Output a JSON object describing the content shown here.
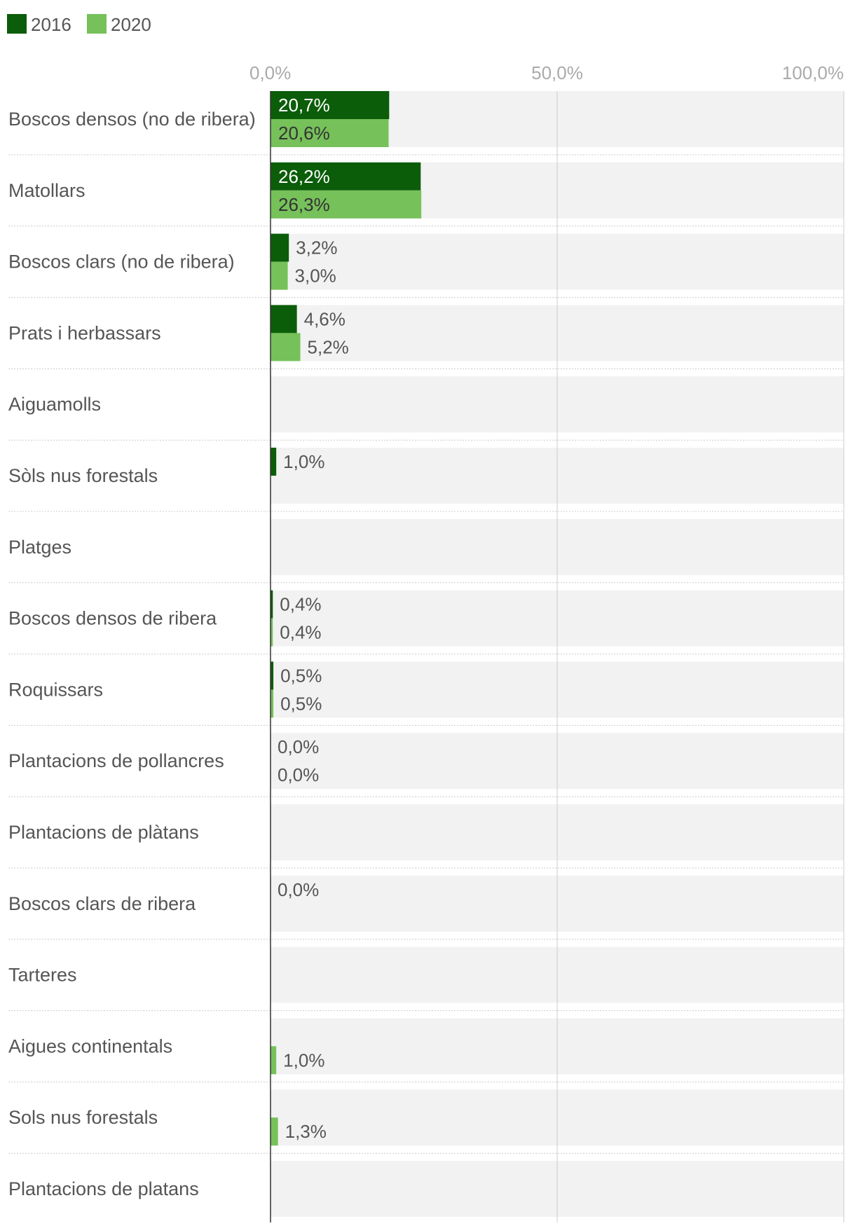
{
  "colors": {
    "series_2016": "#0b5d09",
    "series_2020": "#76c15a",
    "row_background": "#f2f2f2",
    "gridline": "#cccccc",
    "axis": "#333333",
    "separator": "#cccccc",
    "label_inside_2016": "#ffffff",
    "label_inside_2020": "#333333",
    "label_outside": "#555555",
    "tick_label": "#aaaaaa",
    "category_label": "#555555"
  },
  "chart_data": {
    "type": "bar",
    "orientation": "horizontal",
    "title": "",
    "xlabel": "",
    "ylabel": "",
    "xlim": [
      0,
      100
    ],
    "ticks": [
      {
        "value": 0,
        "label": "0,0%"
      },
      {
        "value": 50,
        "label": "50,0%"
      },
      {
        "value": 100,
        "label": "100,0%"
      }
    ],
    "grid": true,
    "legend": {
      "position": "top-left",
      "entries": [
        {
          "name": "2016",
          "color": "#0b5d09"
        },
        {
          "name": "2020",
          "color": "#76c15a"
        }
      ]
    },
    "categories": [
      "Boscos densos (no de ribera)",
      "Matollars",
      "Boscos clars (no de ribera)",
      "Prats i herbassars",
      "Aiguamolls",
      "Sòls nus forestals",
      "Platges",
      "Boscos densos de ribera",
      "Roquissars",
      "Plantacions de pollancres",
      "Plantacions de plàtans",
      "Boscos clars de ribera",
      "Tarteres",
      "Aigues continentals",
      "Sols nus forestals",
      "Plantacions de platans"
    ],
    "series": [
      {
        "name": "2016",
        "values": [
          20.7,
          26.2,
          3.2,
          4.6,
          null,
          1.0,
          null,
          0.4,
          0.5,
          0.0,
          null,
          0.0,
          null,
          null,
          null,
          null
        ],
        "labels": [
          "20,7%",
          "26,2%",
          "3,2%",
          "4,6%",
          "",
          "1,0%",
          "",
          "0,4%",
          "0,5%",
          "0,0%",
          "",
          "0,0%",
          "",
          "",
          "",
          ""
        ]
      },
      {
        "name": "2020",
        "values": [
          20.6,
          26.3,
          3.0,
          5.2,
          null,
          null,
          null,
          0.4,
          0.5,
          0.0,
          null,
          null,
          null,
          1.0,
          1.3,
          null
        ],
        "labels": [
          "20,6%",
          "26,3%",
          "3,0%",
          "5,2%",
          "",
          "",
          "",
          "0,4%",
          "0,5%",
          "0,0%",
          "",
          "",
          "",
          "1,0%",
          "1,3%",
          ""
        ]
      }
    ]
  }
}
